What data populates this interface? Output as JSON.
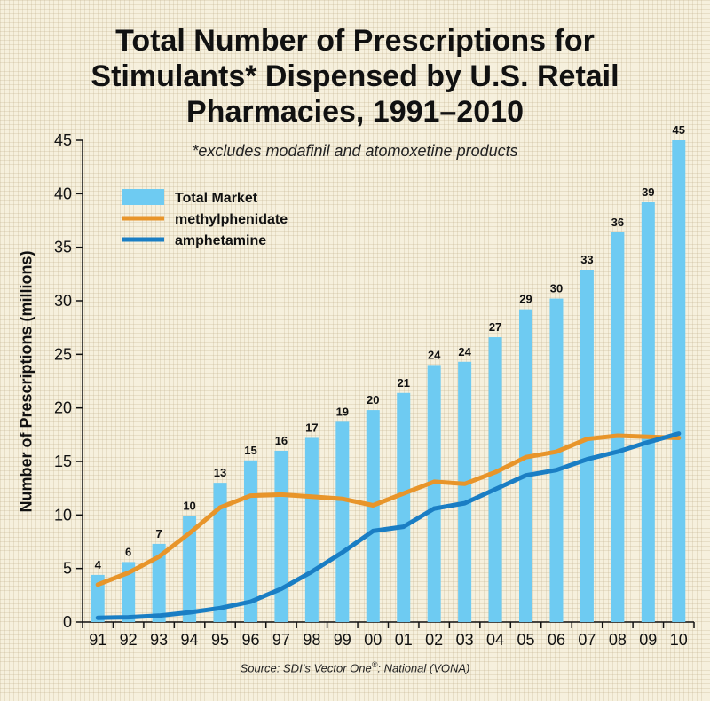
{
  "chart_data": {
    "type": "bar",
    "title_lines": [
      "Total Number of Prescriptions for",
      "Stimulants* Dispensed by U.S. Retail",
      "Pharmacies, 1991–2010"
    ],
    "subtitle": "*excludes modafinil and atomoxetine products",
    "ylabel": "Number of Prescriptions (millions)",
    "xlabel": "",
    "source": {
      "prefix": "Source: SDI’s Vector One",
      "sup": "®",
      "suffix": ": National (VONA)"
    },
    "ylim": [
      0,
      45
    ],
    "yticks": [
      0,
      5,
      10,
      15,
      20,
      25,
      30,
      35,
      40,
      45
    ],
    "categories": [
      "91",
      "92",
      "93",
      "94",
      "95",
      "96",
      "97",
      "98",
      "99",
      "00",
      "01",
      "02",
      "03",
      "04",
      "05",
      "06",
      "07",
      "08",
      "09",
      "10"
    ],
    "series": [
      {
        "name": "Total Market",
        "kind": "bar",
        "color": "#6ecbf2",
        "values": [
          4.4,
          5.6,
          7.3,
          9.9,
          13.0,
          15.1,
          16.0,
          17.2,
          18.7,
          19.8,
          21.4,
          24.0,
          24.3,
          26.6,
          29.2,
          30.2,
          32.9,
          36.4,
          39.2,
          45.0
        ],
        "labels": [
          "4",
          "6",
          "7",
          "10",
          "13",
          "15",
          "16",
          "17",
          "19",
          "20",
          "21",
          "24",
          "24",
          "27",
          "29",
          "30",
          "33",
          "36",
          "39",
          "45"
        ]
      },
      {
        "name": "methylphenidate",
        "kind": "line",
        "color": "#e8952a",
        "values": [
          3.5,
          4.6,
          6.1,
          8.3,
          10.7,
          11.8,
          11.9,
          11.7,
          11.5,
          10.9,
          12.0,
          13.1,
          12.9,
          14.0,
          15.4,
          15.9,
          17.1,
          17.4,
          17.3,
          17.2
        ]
      },
      {
        "name": "amphetamine",
        "kind": "line",
        "color": "#1a7ec4",
        "values": [
          0.4,
          0.45,
          0.6,
          0.9,
          1.3,
          1.9,
          3.1,
          4.7,
          6.5,
          8.5,
          8.9,
          10.6,
          11.1,
          12.4,
          13.7,
          14.2,
          15.2,
          15.9,
          16.8,
          17.6
        ]
      }
    ]
  }
}
